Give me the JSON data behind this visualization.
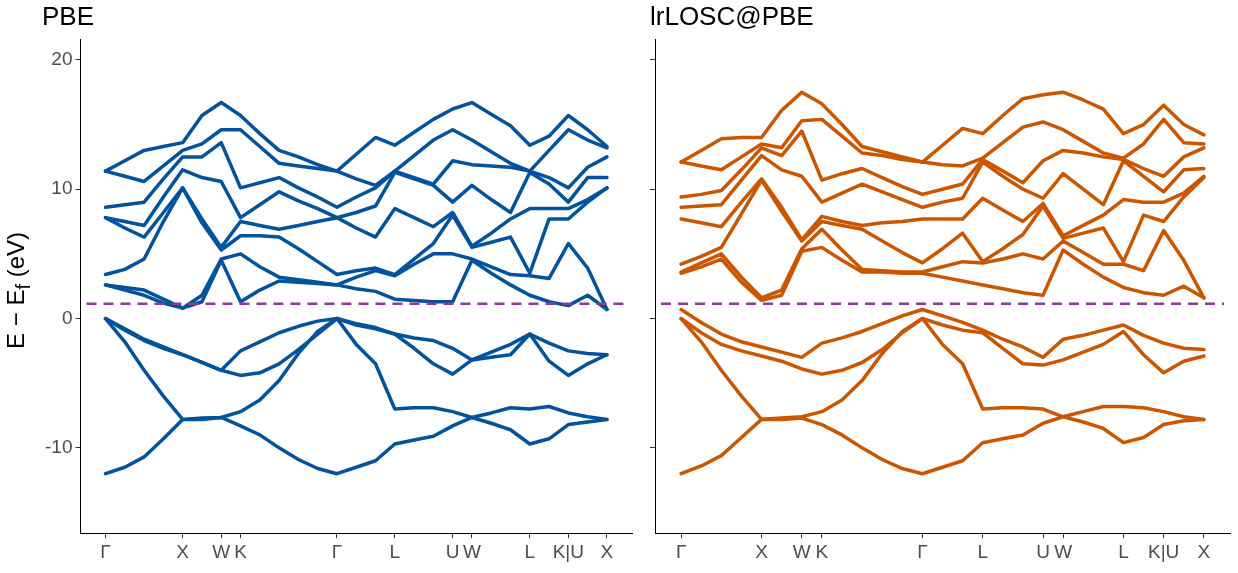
{
  "chart_data": [
    {
      "type": "line",
      "title": "PBE",
      "ylabel": "E − E$_{f}$ (eV)",
      "marker": "none",
      "grid": false,
      "legend": false,
      "categories": [
        "Γ",
        null,
        null,
        null,
        "X",
        null,
        "W",
        "K",
        null,
        null,
        null,
        null,
        "Γ",
        null,
        null,
        "L",
        null,
        null,
        "U",
        "W",
        null,
        null,
        "L",
        null,
        "K|U",
        null,
        "X"
      ],
      "ylim": [
        -16.6,
        21.6
      ],
      "yticks": [
        -10,
        0,
        10,
        20
      ],
      "ref_lines": [
        {
          "axis": "y",
          "value": 1.15,
          "color": "#8e3a9a",
          "line_style": "dashed"
        }
      ],
      "series": [
        {
          "color": "#00539c",
          "values": [
            -12,
            -11.5,
            -10.7,
            -9.3,
            -7.8,
            -7.8,
            -7.65,
            -8.3,
            -9.0,
            -10.0,
            -10.9,
            -11.6,
            -12,
            -11.5,
            -11.0,
            -9.7,
            -9.4,
            -9.1,
            -8.3,
            -7.65,
            -8.1,
            -8.6,
            -9.7,
            -9.3,
            -8.2,
            -8.0,
            -7.8
          ]
        },
        {
          "color": "#00539c",
          "values": [
            0,
            -1.8,
            -4.0,
            -6.0,
            -7.8,
            -7.7,
            -7.65,
            -7.2,
            -6.3,
            -4.8,
            -2.7,
            -1.0,
            0,
            -2.0,
            -3.5,
            -7.0,
            -6.9,
            -6.9,
            -7.2,
            -7.65,
            -7.3,
            -6.9,
            -7.0,
            -6.8,
            -7.3,
            -7.6,
            -7.8
          ]
        },
        {
          "color": "#00539c",
          "values": [
            0,
            -0.9,
            -1.7,
            -2.3,
            -2.8,
            -3.4,
            -4.0,
            -4.4,
            -4.2,
            -3.5,
            -2.4,
            -1.2,
            0,
            -0.5,
            -0.8,
            -1.2,
            -2.3,
            -3.5,
            -4.3,
            -3.2,
            -3.0,
            -2.8,
            -1.2,
            -3.3,
            -4.4,
            -3.5,
            -2.8
          ]
        },
        {
          "color": "#00539c",
          "values": [
            0,
            -0.8,
            -1.6,
            -2.2,
            -2.8,
            -3.4,
            -4.0,
            -2.5,
            -1.8,
            -1.1,
            -0.6,
            -0.2,
            0,
            -0.4,
            -0.7,
            -1.2,
            -1.5,
            -1.7,
            -2.3,
            -3.2,
            -2.6,
            -2.0,
            -1.2,
            -1.9,
            -2.5,
            -2.7,
            -2.8
          ]
        },
        {
          "color": "#00539c",
          "values": [
            2.6,
            2.2,
            1.8,
            1.2,
            0.8,
            1.3,
            4.5,
            1.3,
            2.2,
            2.9,
            2.8,
            2.7,
            2.6,
            2.3,
            2.1,
            1.5,
            1.4,
            1.3,
            1.3,
            4.5,
            3.5,
            2.6,
            1.8,
            1.3,
            1.0,
            1.8,
            0.7
          ]
        },
        {
          "color": "#00539c",
          "values": [
            2.6,
            2.4,
            2.2,
            1.5,
            0.8,
            1.8,
            4.6,
            5.0,
            4.0,
            3.2,
            3.0,
            2.8,
            2.6,
            3.2,
            3.7,
            3.3,
            4.2,
            5.0,
            5.0,
            4.6,
            4.0,
            3.4,
            3.3,
            3.1,
            5.8,
            3.9,
            0.7
          ]
        },
        {
          "color": "#00539c",
          "values": [
            3.4,
            3.8,
            4.6,
            7.5,
            10.1,
            7.4,
            5.3,
            6.4,
            6.4,
            6.3,
            5.4,
            4.4,
            3.4,
            3.7,
            3.9,
            3.4,
            4.6,
            5.8,
            8.0,
            5.5,
            5.9,
            6.3,
            3.5,
            7.7,
            7.7,
            9.0,
            10.1
          ]
        },
        {
          "color": "#00539c",
          "values": [
            7.8,
            7.0,
            6.3,
            8.2,
            10.1,
            7.7,
            5.5,
            7.5,
            7.2,
            6.9,
            7.2,
            7.5,
            7.8,
            7.0,
            6.3,
            8.5,
            7.8,
            7.1,
            8.2,
            5.6,
            6.6,
            7.7,
            8.5,
            8.5,
            8.5,
            9.2,
            10.1
          ]
        },
        {
          "color": "#00539c",
          "values": [
            7.8,
            7.5,
            7.2,
            9.4,
            11.5,
            10.9,
            10.6,
            7.8,
            8.8,
            9.8,
            9.1,
            8.5,
            7.8,
            8.2,
            8.7,
            11.3,
            10.8,
            10.3,
            9.0,
            10.3,
            9.2,
            8.2,
            11.3,
            10.4,
            9.0,
            10.9,
            10.9
          ]
        },
        {
          "color": "#00539c",
          "values": [
            8.6,
            8.8,
            9.0,
            10.8,
            12.5,
            12.5,
            13.6,
            10.1,
            10.5,
            10.9,
            10.1,
            9.4,
            8.6,
            9.4,
            10.1,
            11.4,
            10.9,
            10.4,
            12.2,
            11.9,
            11.8,
            11.7,
            11.4,
            10.9,
            10.1,
            11.7,
            12.5
          ]
        },
        {
          "color": "#00539c",
          "values": [
            11.4,
            11.0,
            10.6,
            11.8,
            13.0,
            13.5,
            14.6,
            14.6,
            13.3,
            12.0,
            11.8,
            11.6,
            11.4,
            10.8,
            10.3,
            11.4,
            12.6,
            13.8,
            14.6,
            13.8,
            12.9,
            12.0,
            11.4,
            13.0,
            14.6,
            13.8,
            13.2
          ]
        },
        {
          "color": "#00539c",
          "values": [
            11.4,
            12.2,
            13.0,
            13.3,
            13.6,
            15.7,
            16.7,
            15.7,
            14.3,
            13.0,
            12.5,
            11.9,
            11.4,
            12.7,
            14.0,
            13.4,
            14.4,
            15.4,
            16.2,
            16.7,
            15.8,
            14.9,
            13.4,
            14.1,
            15.7,
            14.6,
            13.3
          ]
        }
      ]
    },
    {
      "type": "line",
      "title": "lrLOSC@PBE",
      "marker": "none",
      "grid": false,
      "legend": false,
      "tick_labels": "x",
      "categories": [
        "Γ",
        null,
        null,
        null,
        "X",
        null,
        "W",
        "K",
        null,
        null,
        null,
        null,
        "Γ",
        null,
        null,
        "L",
        null,
        null,
        "U",
        "W",
        null,
        null,
        "L",
        null,
        "K|U",
        null,
        "X"
      ],
      "ylim": [
        -16.6,
        21.6
      ],
      "yticks": [
        -10,
        0,
        10,
        20
      ],
      "ref_lines": [
        {
          "axis": "y",
          "value": 1.15,
          "color": "#8e3a9a",
          "line_style": "dashed"
        }
      ],
      "series": [
        {
          "color": "#cc5500",
          "values": [
            -12,
            -11.4,
            -10.6,
            -9.2,
            -7.8,
            -7.8,
            -7.7,
            -8.2,
            -9.0,
            -10.0,
            -10.9,
            -11.6,
            -12,
            -11.5,
            -11.0,
            -9.6,
            -9.3,
            -9.0,
            -8.1,
            -7.6,
            -8.0,
            -8.5,
            -9.6,
            -9.2,
            -8.2,
            -7.9,
            -7.8
          ]
        },
        {
          "color": "#cc5500",
          "values": [
            0,
            -1.8,
            -4.0,
            -6.0,
            -7.8,
            -7.7,
            -7.6,
            -7.2,
            -6.3,
            -4.8,
            -2.7,
            -1.0,
            0,
            -2.0,
            -3.5,
            -7.0,
            -6.9,
            -6.9,
            -7.0,
            -7.6,
            -7.2,
            -6.8,
            -6.8,
            -6.9,
            -7.2,
            -7.6,
            -7.8
          ]
        },
        {
          "color": "#cc5500",
          "values": [
            0,
            -1.1,
            -2.0,
            -2.5,
            -2.9,
            -3.3,
            -3.9,
            -4.3,
            -4.0,
            -3.4,
            -2.4,
            -1.1,
            0,
            -0.5,
            -0.9,
            -1.1,
            -2.3,
            -3.5,
            -3.6,
            -3.2,
            -2.6,
            -2.0,
            -1.0,
            -2.8,
            -4.2,
            -3.3,
            -2.9
          ]
        },
        {
          "color": "#cc5500",
          "values": [
            0.7,
            -0.3,
            -1.2,
            -1.8,
            -2.2,
            -2.6,
            -3.0,
            -1.9,
            -1.5,
            -1.0,
            -0.4,
            0.2,
            0.7,
            0.2,
            -0.3,
            -0.9,
            -1.6,
            -2.2,
            -3.0,
            -1.6,
            -1.3,
            -0.9,
            -0.5,
            -1.3,
            -1.9,
            -2.3,
            -2.4
          ]
        },
        {
          "color": "#cc5500",
          "values": [
            3.5,
            4.0,
            4.6,
            2.8,
            1.4,
            1.8,
            5.2,
            5.5,
            4.5,
            3.6,
            3.6,
            3.5,
            3.5,
            3.2,
            2.9,
            2.6,
            2.3,
            2.0,
            1.8,
            5.3,
            4.2,
            3.2,
            2.4,
            2.0,
            1.8,
            2.5,
            1.6
          ]
        },
        {
          "color": "#cc5500",
          "values": [
            3.6,
            4.3,
            5.0,
            3.2,
            1.6,
            2.2,
            5.4,
            6.9,
            5.3,
            3.8,
            3.7,
            3.6,
            3.6,
            4.0,
            4.4,
            4.3,
            4.6,
            5.0,
            4.6,
            6.0,
            5.1,
            4.2,
            4.2,
            3.7,
            6.8,
            4.5,
            1.6
          ]
        },
        {
          "color": "#cc5500",
          "values": [
            4.2,
            4.8,
            5.5,
            8.1,
            10.7,
            8.3,
            6.0,
            7.5,
            7.2,
            6.9,
            6.0,
            5.1,
            4.3,
            5.4,
            6.6,
            4.4,
            5.4,
            6.5,
            8.7,
            6.2,
            6.6,
            7.0,
            4.4,
            8.0,
            7.5,
            9.4,
            10.9
          ]
        },
        {
          "color": "#cc5500",
          "values": [
            7.7,
            7.4,
            7.1,
            9.0,
            10.8,
            8.6,
            6.1,
            7.9,
            7.5,
            7.2,
            7.4,
            7.5,
            7.7,
            7.7,
            7.7,
            9.3,
            8.4,
            7.5,
            8.9,
            6.4,
            7.2,
            8.0,
            9.2,
            9.0,
            9.0,
            9.7,
            11.0
          ]
        },
        {
          "color": "#cc5500",
          "values": [
            8.6,
            8.7,
            8.8,
            10.7,
            12.6,
            11.5,
            11.0,
            9.0,
            9.7,
            10.4,
            9.8,
            9.2,
            8.6,
            9.0,
            9.3,
            12.1,
            11.0,
            10.0,
            9.3,
            11.2,
            10.0,
            8.8,
            12.2,
            11.0,
            9.8,
            11.5,
            11.6
          ]
        },
        {
          "color": "#cc5500",
          "values": [
            9.4,
            9.6,
            9.9,
            11.5,
            13.2,
            12.6,
            14.5,
            10.7,
            11.2,
            11.6,
            10.9,
            10.2,
            9.6,
            10.0,
            10.4,
            12.3,
            11.4,
            10.5,
            12.2,
            13.0,
            12.8,
            12.5,
            12.3,
            11.6,
            11.0,
            12.5,
            13.2
          ]
        },
        {
          "color": "#cc5500",
          "values": [
            12.1,
            11.8,
            11.5,
            12.5,
            13.5,
            13.2,
            15.3,
            15.4,
            14.1,
            12.8,
            12.6,
            12.3,
            12.1,
            11.9,
            11.8,
            12.4,
            13.6,
            14.8,
            15.2,
            14.6,
            13.7,
            12.8,
            12.4,
            13.5,
            15.4,
            13.6,
            13.5
          ]
        },
        {
          "color": "#cc5500",
          "values": [
            12.1,
            13.0,
            13.9,
            14.0,
            14.0,
            16.1,
            17.5,
            16.6,
            15.0,
            13.3,
            12.9,
            12.5,
            12.1,
            13.4,
            14.7,
            14.3,
            15.7,
            17.0,
            17.3,
            17.5,
            16.9,
            16.2,
            14.3,
            15.0,
            16.5,
            15.0,
            14.2
          ]
        }
      ]
    }
  ]
}
